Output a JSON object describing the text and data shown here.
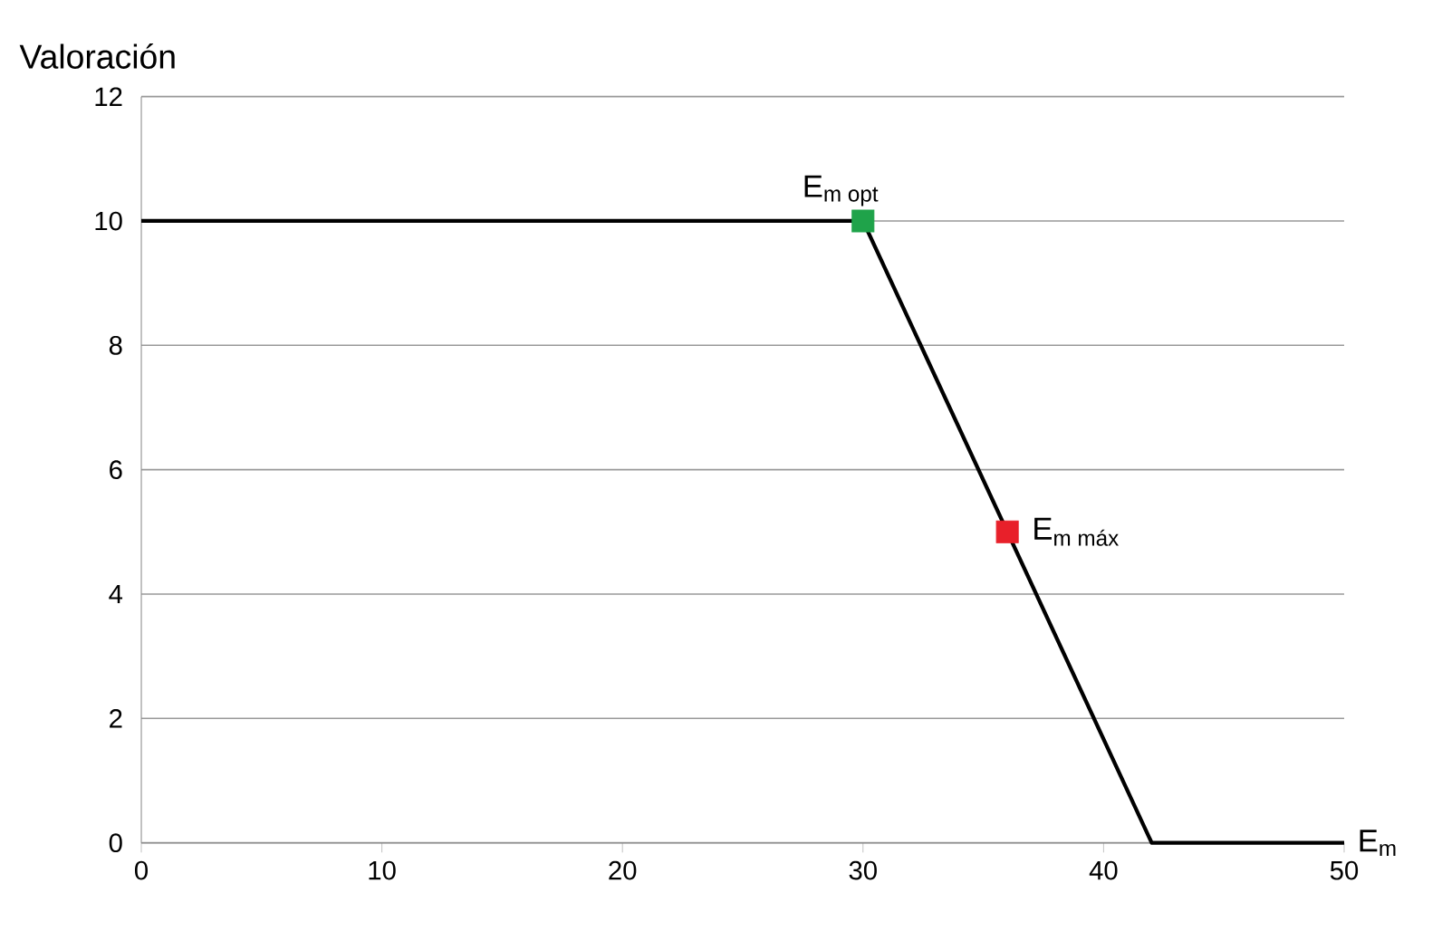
{
  "chart_data": {
    "type": "line",
    "ylabel": "Valoración",
    "xlabel": "E$_{m}$",
    "xlim": [
      0,
      50
    ],
    "xticks": [
      0,
      10,
      20,
      30,
      40,
      50
    ],
    "ylim": [
      0,
      12
    ],
    "yticks": [
      0,
      2,
      4,
      6,
      8,
      10,
      12
    ],
    "grid": "y",
    "series": [
      {
        "color": "#000000",
        "x": [
          0,
          30,
          42,
          50
        ],
        "values": [
          10,
          10,
          0,
          0
        ]
      },
      {
        "type": "scatter",
        "marker": "square",
        "color": "#1fa34a",
        "x": [
          30
        ],
        "values": [
          10
        ]
      },
      {
        "type": "scatter",
        "marker": "square",
        "color": "#e8202a",
        "x": [
          36
        ],
        "values": [
          5
        ]
      }
    ],
    "annotations": [
      {
        "text": "\\text{E}_{\\text{m opt}}",
        "x": 30,
        "y": 10
      },
      {
        "text": "\\text{E}_{\\text{m máx}}",
        "x": 36,
        "y": 5
      }
    ]
  }
}
